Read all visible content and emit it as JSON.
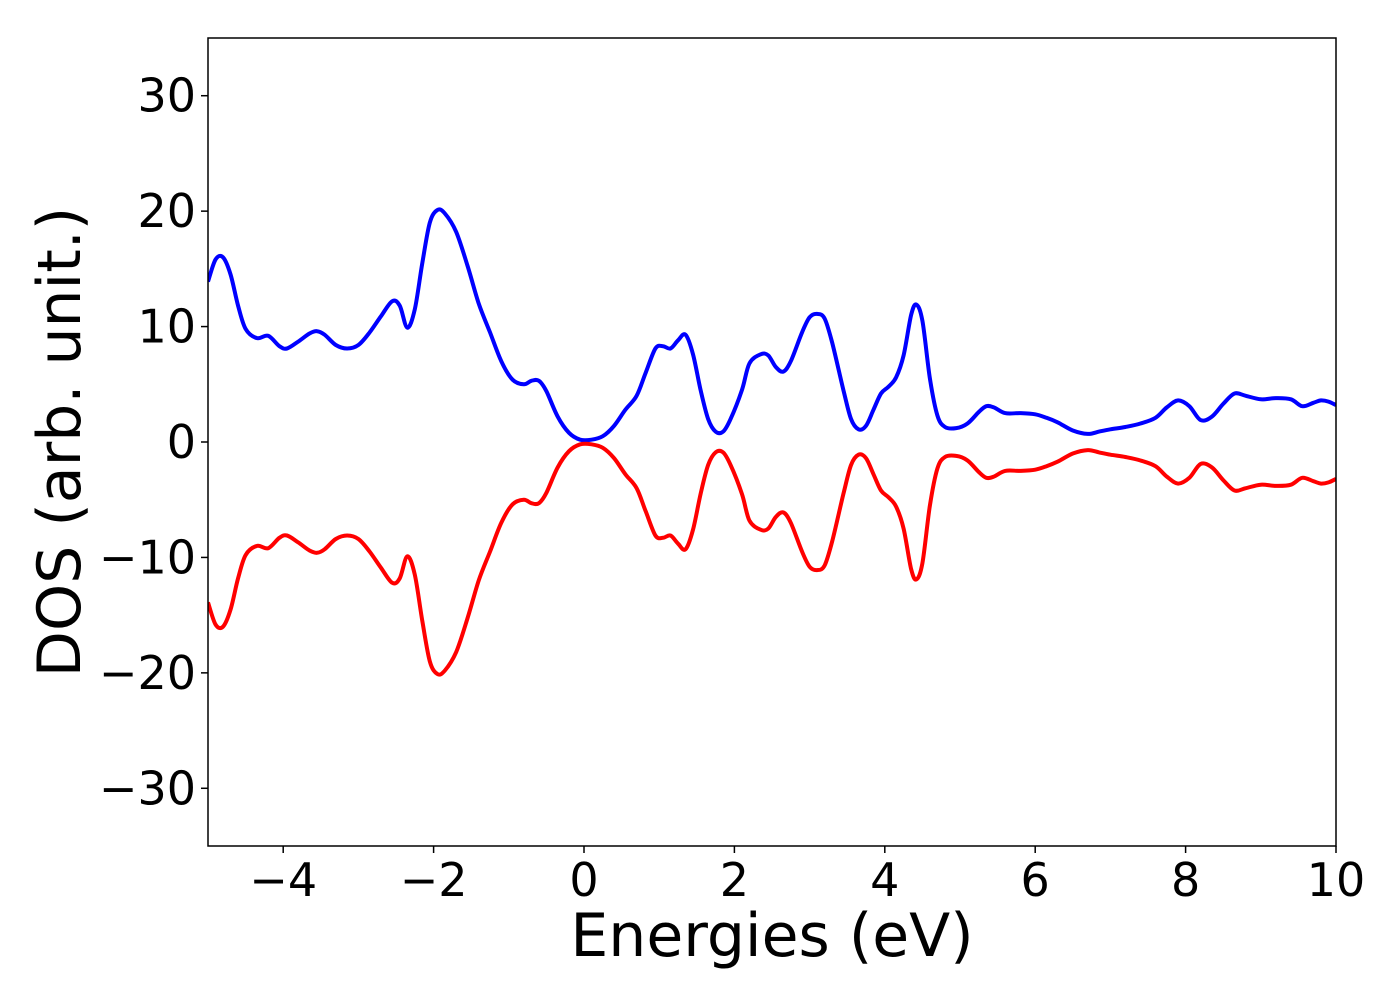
{
  "chart_data": {
    "type": "line",
    "title": "",
    "xlabel": "Energies (eV)",
    "ylabel": "DOS (arb. unit.)",
    "xlim": [
      -5,
      10
    ],
    "ylim": [
      -35,
      35
    ],
    "xticks": [
      -4,
      -2,
      0,
      2,
      4,
      6,
      8,
      10
    ],
    "yticks": [
      30,
      20,
      10,
      0,
      -10,
      -20,
      -30
    ],
    "xtick_labels": [
      "−4",
      "−2",
      "0",
      "2",
      "4",
      "6",
      "8",
      "10"
    ],
    "ytick_labels": [
      "30",
      "20",
      "10",
      "0",
      "−10",
      "−20",
      "−30"
    ],
    "grid": false,
    "series": [
      {
        "color": "#0000ff",
        "points": [
          [
            -5.0,
            13.9
          ],
          [
            -4.9,
            15.8
          ],
          [
            -4.8,
            16.0
          ],
          [
            -4.7,
            14.5
          ],
          [
            -4.6,
            11.8
          ],
          [
            -4.5,
            9.8
          ],
          [
            -4.35,
            9.0
          ],
          [
            -4.2,
            9.2
          ],
          [
            -4.05,
            8.3
          ],
          [
            -3.95,
            8.1
          ],
          [
            -3.8,
            8.7
          ],
          [
            -3.65,
            9.4
          ],
          [
            -3.55,
            9.6
          ],
          [
            -3.45,
            9.3
          ],
          [
            -3.3,
            8.4
          ],
          [
            -3.15,
            8.1
          ],
          [
            -3.0,
            8.4
          ],
          [
            -2.85,
            9.5
          ],
          [
            -2.7,
            10.9
          ],
          [
            -2.55,
            12.2
          ],
          [
            -2.45,
            11.8
          ],
          [
            -2.35,
            9.9
          ],
          [
            -2.25,
            11.5
          ],
          [
            -2.15,
            15.5
          ],
          [
            -2.05,
            19.0
          ],
          [
            -1.95,
            20.1
          ],
          [
            -1.85,
            19.8
          ],
          [
            -1.7,
            18.2
          ],
          [
            -1.55,
            15.3
          ],
          [
            -1.4,
            12.0
          ],
          [
            -1.25,
            9.5
          ],
          [
            -1.1,
            7.0
          ],
          [
            -0.95,
            5.4
          ],
          [
            -0.8,
            5.0
          ],
          [
            -0.7,
            5.3
          ],
          [
            -0.6,
            5.3
          ],
          [
            -0.5,
            4.4
          ],
          [
            -0.35,
            2.2
          ],
          [
            -0.2,
            0.8
          ],
          [
            -0.05,
            0.2
          ],
          [
            0.1,
            0.2
          ],
          [
            0.25,
            0.5
          ],
          [
            0.4,
            1.4
          ],
          [
            0.55,
            2.8
          ],
          [
            0.7,
            4.0
          ],
          [
            0.82,
            6.0
          ],
          [
            0.95,
            8.1
          ],
          [
            1.05,
            8.3
          ],
          [
            1.15,
            8.1
          ],
          [
            1.25,
            8.8
          ],
          [
            1.35,
            9.3
          ],
          [
            1.45,
            7.6
          ],
          [
            1.55,
            4.5
          ],
          [
            1.65,
            2.0
          ],
          [
            1.75,
            0.9
          ],
          [
            1.85,
            0.9
          ],
          [
            1.95,
            2.0
          ],
          [
            2.1,
            4.5
          ],
          [
            2.2,
            6.8
          ],
          [
            2.35,
            7.6
          ],
          [
            2.45,
            7.5
          ],
          [
            2.55,
            6.5
          ],
          [
            2.65,
            6.1
          ],
          [
            2.75,
            7.0
          ],
          [
            2.9,
            9.5
          ],
          [
            3.0,
            10.8
          ],
          [
            3.1,
            11.1
          ],
          [
            3.2,
            10.7
          ],
          [
            3.3,
            8.6
          ],
          [
            3.45,
            4.5
          ],
          [
            3.55,
            2.0
          ],
          [
            3.65,
            1.1
          ],
          [
            3.75,
            1.4
          ],
          [
            3.85,
            2.8
          ],
          [
            3.95,
            4.2
          ],
          [
            4.05,
            4.8
          ],
          [
            4.15,
            5.6
          ],
          [
            4.25,
            7.5
          ],
          [
            4.35,
            11.0
          ],
          [
            4.42,
            11.9
          ],
          [
            4.5,
            10.5
          ],
          [
            4.6,
            5.5
          ],
          [
            4.7,
            2.3
          ],
          [
            4.8,
            1.3
          ],
          [
            4.95,
            1.2
          ],
          [
            5.1,
            1.6
          ],
          [
            5.25,
            2.6
          ],
          [
            5.35,
            3.1
          ],
          [
            5.45,
            3.0
          ],
          [
            5.6,
            2.5
          ],
          [
            5.8,
            2.5
          ],
          [
            6.0,
            2.4
          ],
          [
            6.15,
            2.1
          ],
          [
            6.3,
            1.7
          ],
          [
            6.5,
            1.0
          ],
          [
            6.7,
            0.7
          ],
          [
            6.85,
            0.9
          ],
          [
            7.0,
            1.1
          ],
          [
            7.2,
            1.3
          ],
          [
            7.4,
            1.6
          ],
          [
            7.6,
            2.1
          ],
          [
            7.75,
            3.0
          ],
          [
            7.9,
            3.6
          ],
          [
            8.05,
            3.1
          ],
          [
            8.2,
            1.9
          ],
          [
            8.35,
            2.2
          ],
          [
            8.5,
            3.3
          ],
          [
            8.65,
            4.2
          ],
          [
            8.8,
            4.0
          ],
          [
            9.0,
            3.7
          ],
          [
            9.2,
            3.8
          ],
          [
            9.4,
            3.7
          ],
          [
            9.55,
            3.1
          ],
          [
            9.7,
            3.4
          ],
          [
            9.8,
            3.6
          ],
          [
            9.9,
            3.5
          ],
          [
            10.0,
            3.2
          ]
        ]
      },
      {
        "color": "#ff0000",
        "points": [
          [
            -5.0,
            -13.9
          ],
          [
            -4.9,
            -15.8
          ],
          [
            -4.8,
            -16.0
          ],
          [
            -4.7,
            -14.5
          ],
          [
            -4.6,
            -11.8
          ],
          [
            -4.5,
            -9.8
          ],
          [
            -4.35,
            -9.0
          ],
          [
            -4.2,
            -9.2
          ],
          [
            -4.05,
            -8.3
          ],
          [
            -3.95,
            -8.1
          ],
          [
            -3.8,
            -8.7
          ],
          [
            -3.65,
            -9.4
          ],
          [
            -3.55,
            -9.6
          ],
          [
            -3.45,
            -9.3
          ],
          [
            -3.3,
            -8.4
          ],
          [
            -3.15,
            -8.1
          ],
          [
            -3.0,
            -8.4
          ],
          [
            -2.85,
            -9.5
          ],
          [
            -2.7,
            -10.9
          ],
          [
            -2.55,
            -12.2
          ],
          [
            -2.45,
            -11.8
          ],
          [
            -2.35,
            -9.9
          ],
          [
            -2.25,
            -11.5
          ],
          [
            -2.15,
            -15.5
          ],
          [
            -2.05,
            -19.0
          ],
          [
            -1.95,
            -20.1
          ],
          [
            -1.85,
            -19.8
          ],
          [
            -1.7,
            -18.2
          ],
          [
            -1.55,
            -15.3
          ],
          [
            -1.4,
            -12.0
          ],
          [
            -1.25,
            -9.5
          ],
          [
            -1.1,
            -7.0
          ],
          [
            -0.95,
            -5.4
          ],
          [
            -0.8,
            -5.0
          ],
          [
            -0.7,
            -5.3
          ],
          [
            -0.6,
            -5.3
          ],
          [
            -0.5,
            -4.4
          ],
          [
            -0.35,
            -2.2
          ],
          [
            -0.2,
            -0.8
          ],
          [
            -0.05,
            -0.2
          ],
          [
            0.1,
            -0.2
          ],
          [
            0.25,
            -0.5
          ],
          [
            0.4,
            -1.4
          ],
          [
            0.55,
            -2.8
          ],
          [
            0.7,
            -4.0
          ],
          [
            0.82,
            -6.0
          ],
          [
            0.95,
            -8.1
          ],
          [
            1.05,
            -8.3
          ],
          [
            1.15,
            -8.1
          ],
          [
            1.25,
            -8.8
          ],
          [
            1.35,
            -9.3
          ],
          [
            1.45,
            -7.6
          ],
          [
            1.55,
            -4.5
          ],
          [
            1.65,
            -2.0
          ],
          [
            1.75,
            -0.9
          ],
          [
            1.85,
            -0.9
          ],
          [
            1.95,
            -2.0
          ],
          [
            2.1,
            -4.5
          ],
          [
            2.2,
            -6.8
          ],
          [
            2.35,
            -7.6
          ],
          [
            2.45,
            -7.5
          ],
          [
            2.55,
            -6.5
          ],
          [
            2.65,
            -6.1
          ],
          [
            2.75,
            -7.0
          ],
          [
            2.9,
            -9.5
          ],
          [
            3.0,
            -10.8
          ],
          [
            3.1,
            -11.1
          ],
          [
            3.2,
            -10.7
          ],
          [
            3.3,
            -8.6
          ],
          [
            3.45,
            -4.5
          ],
          [
            3.55,
            -2.0
          ],
          [
            3.65,
            -1.1
          ],
          [
            3.75,
            -1.4
          ],
          [
            3.85,
            -2.8
          ],
          [
            3.95,
            -4.2
          ],
          [
            4.05,
            -4.8
          ],
          [
            4.15,
            -5.6
          ],
          [
            4.25,
            -7.5
          ],
          [
            4.35,
            -11.0
          ],
          [
            4.42,
            -11.9
          ],
          [
            4.5,
            -10.5
          ],
          [
            4.6,
            -5.5
          ],
          [
            4.7,
            -2.3
          ],
          [
            4.8,
            -1.3
          ],
          [
            4.95,
            -1.2
          ],
          [
            5.1,
            -1.6
          ],
          [
            5.25,
            -2.6
          ],
          [
            5.35,
            -3.1
          ],
          [
            5.45,
            -3.0
          ],
          [
            5.6,
            -2.5
          ],
          [
            5.8,
            -2.5
          ],
          [
            6.0,
            -2.4
          ],
          [
            6.15,
            -2.1
          ],
          [
            6.3,
            -1.7
          ],
          [
            6.5,
            -1.0
          ],
          [
            6.7,
            -0.7
          ],
          [
            6.85,
            -0.9
          ],
          [
            7.0,
            -1.1
          ],
          [
            7.2,
            -1.3
          ],
          [
            7.4,
            -1.6
          ],
          [
            7.6,
            -2.1
          ],
          [
            7.75,
            -3.0
          ],
          [
            7.9,
            -3.6
          ],
          [
            8.05,
            -3.1
          ],
          [
            8.2,
            -1.9
          ],
          [
            8.35,
            -2.2
          ],
          [
            8.5,
            -3.3
          ],
          [
            8.65,
            -4.2
          ],
          [
            8.8,
            -4.0
          ],
          [
            9.0,
            -3.7
          ],
          [
            9.2,
            -3.8
          ],
          [
            9.4,
            -3.7
          ],
          [
            9.55,
            -3.1
          ],
          [
            9.7,
            -3.4
          ],
          [
            9.8,
            -3.6
          ],
          [
            9.9,
            -3.5
          ],
          [
            10.0,
            -3.2
          ]
        ]
      }
    ]
  }
}
